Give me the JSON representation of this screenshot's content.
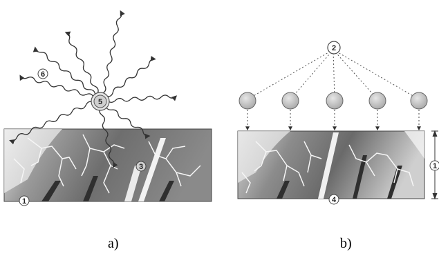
{
  "panels": {
    "a": {
      "caption": "a)",
      "markers": [
        "1",
        "3",
        "5",
        "6"
      ]
    },
    "b": {
      "caption": "b)",
      "markers": [
        "1",
        "2",
        "4"
      ]
    }
  },
  "colors": {
    "background": "#ffffff",
    "slab_dark": "#555555",
    "slab_light": "#dcdcdc",
    "crack": "#f4f4f4",
    "marker_fill": "#c8c8c8",
    "stroke": "#333333"
  }
}
